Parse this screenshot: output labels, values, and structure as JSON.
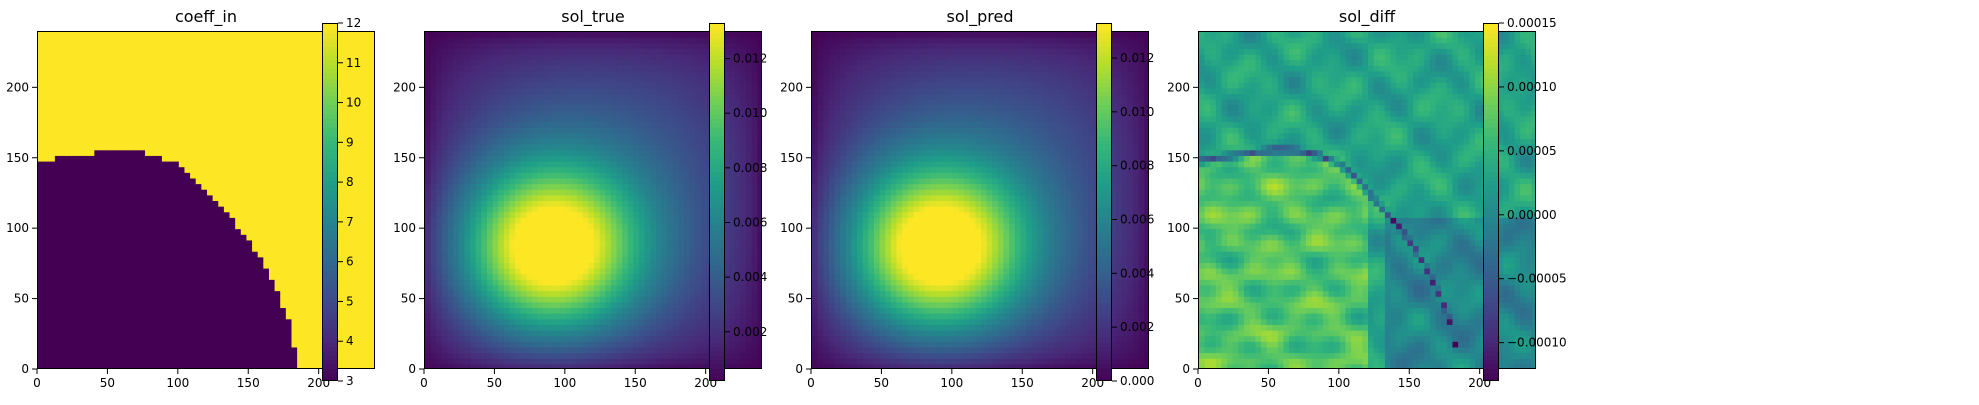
{
  "chart_data": [
    {
      "type": "heatmap",
      "title": "coeff_in",
      "field": "piecewise",
      "xlim": [
        0,
        240
      ],
      "ylim": [
        0,
        240
      ],
      "xticks": [
        0,
        50,
        100,
        150,
        200
      ],
      "yticks": [
        0,
        50,
        100,
        150,
        200
      ],
      "colorbar": {
        "range": [
          3,
          12
        ],
        "ticks": [
          3,
          4,
          5,
          6,
          7,
          8,
          9,
          10,
          11,
          12
        ]
      },
      "boundary": [
        [
          0,
          148
        ],
        [
          20,
          151
        ],
        [
          40,
          154
        ],
        [
          55,
          156
        ],
        [
          70,
          155
        ],
        [
          85,
          152
        ],
        [
          100,
          146
        ],
        [
          110,
          137
        ],
        [
          120,
          126
        ],
        [
          130,
          115
        ],
        [
          140,
          104
        ],
        [
          150,
          91
        ],
        [
          160,
          75
        ],
        [
          170,
          55
        ],
        [
          178,
          35
        ],
        [
          182,
          18
        ],
        [
          184,
          0
        ]
      ],
      "values": {
        "below": 3,
        "above": 12
      }
    },
    {
      "type": "heatmap",
      "title": "sol_true",
      "field": "solution",
      "xlim": [
        0,
        240
      ],
      "ylim": [
        0,
        240
      ],
      "xticks": [
        0,
        50,
        100,
        150,
        200
      ],
      "yticks": [
        0,
        50,
        100,
        150,
        200
      ],
      "colorbar": {
        "range": [
          0.0002,
          0.0133
        ],
        "ticks": [
          "0.002",
          "0.004",
          "0.006",
          "0.008",
          "0.010",
          "0.012"
        ],
        "tick_values": [
          0.002,
          0.004,
          0.006,
          0.008,
          0.01,
          0.012
        ]
      },
      "peak": {
        "x": 88,
        "y": 85,
        "value": 0.013
      }
    },
    {
      "type": "heatmap",
      "title": "sol_pred",
      "field": "solution",
      "xlim": [
        0,
        240
      ],
      "ylim": [
        0,
        240
      ],
      "xticks": [
        0,
        50,
        100,
        150,
        200
      ],
      "yticks": [
        0,
        50,
        100,
        150,
        200
      ],
      "colorbar": {
        "range": [
          0.0,
          0.0133
        ],
        "ticks": [
          "0.000",
          "0.002",
          "0.004",
          "0.006",
          "0.008",
          "0.010",
          "0.012"
        ],
        "tick_values": [
          0.0,
          0.002,
          0.004,
          0.006,
          0.008,
          0.01,
          0.012
        ]
      },
      "peak": {
        "x": 88,
        "y": 85,
        "value": 0.013
      }
    },
    {
      "type": "heatmap",
      "title": "sol_diff",
      "field": "difference",
      "xlim": [
        0,
        240
      ],
      "ylim": [
        0,
        240
      ],
      "xticks": [
        0,
        50,
        100,
        150,
        200
      ],
      "yticks": [
        0,
        50,
        100,
        150,
        200
      ],
      "colorbar": {
        "range": [
          -0.00013,
          0.00015
        ],
        "ticks": [
          "−0.00010",
          "−0.00005",
          "0.00000",
          "0.00005",
          "0.00010",
          "0.00015"
        ],
        "tick_values": [
          -0.0001,
          -5e-05,
          0.0,
          5e-05,
          0.0001,
          0.00015
        ]
      }
    }
  ],
  "colors": {
    "viridis": [
      "#440154",
      "#482878",
      "#3e4989",
      "#31688e",
      "#26828e",
      "#1f9e89",
      "#35b779",
      "#6ece58",
      "#b5de2b",
      "#fde725"
    ]
  }
}
